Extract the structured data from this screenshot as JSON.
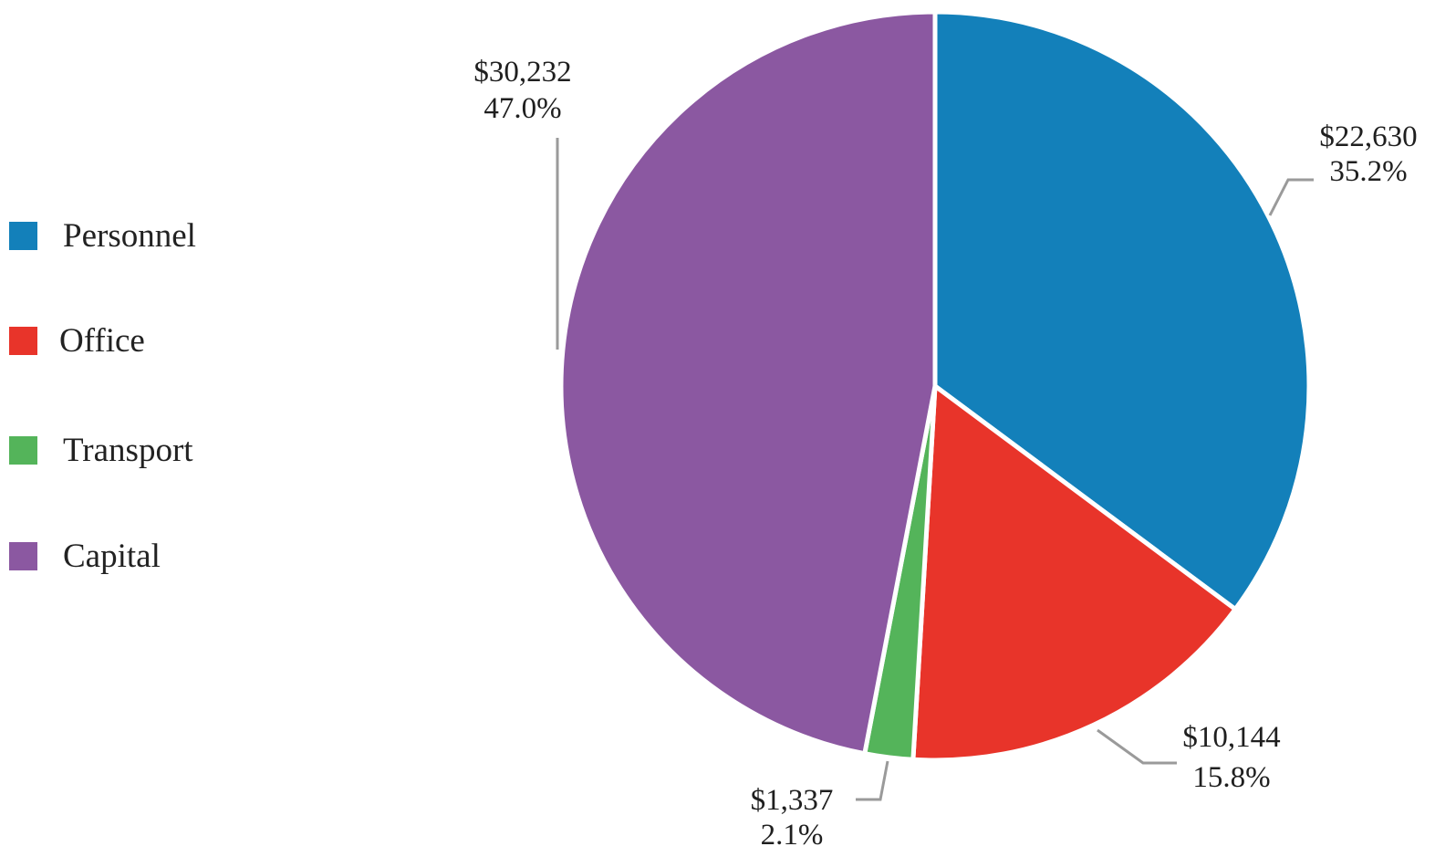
{
  "chart_data": {
    "type": "pie",
    "title": "",
    "legend_position": "left",
    "slices": [
      {
        "name": "Personnel",
        "value": 22630,
        "value_label": "$22,630",
        "percent_label": "35.2%",
        "color": "#1380ba"
      },
      {
        "name": "Office",
        "value": 10144,
        "value_label": "$10,144",
        "percent_label": "15.8%",
        "color": "#e8342a"
      },
      {
        "name": "Transport",
        "value": 1337,
        "value_label": "$1,337",
        "percent_label": "2.1%",
        "color": "#54b45a"
      },
      {
        "name": "Capital",
        "value": 30232,
        "value_label": "$30,232",
        "percent_label": "47.0%",
        "color": "#8b58a1"
      }
    ]
  }
}
